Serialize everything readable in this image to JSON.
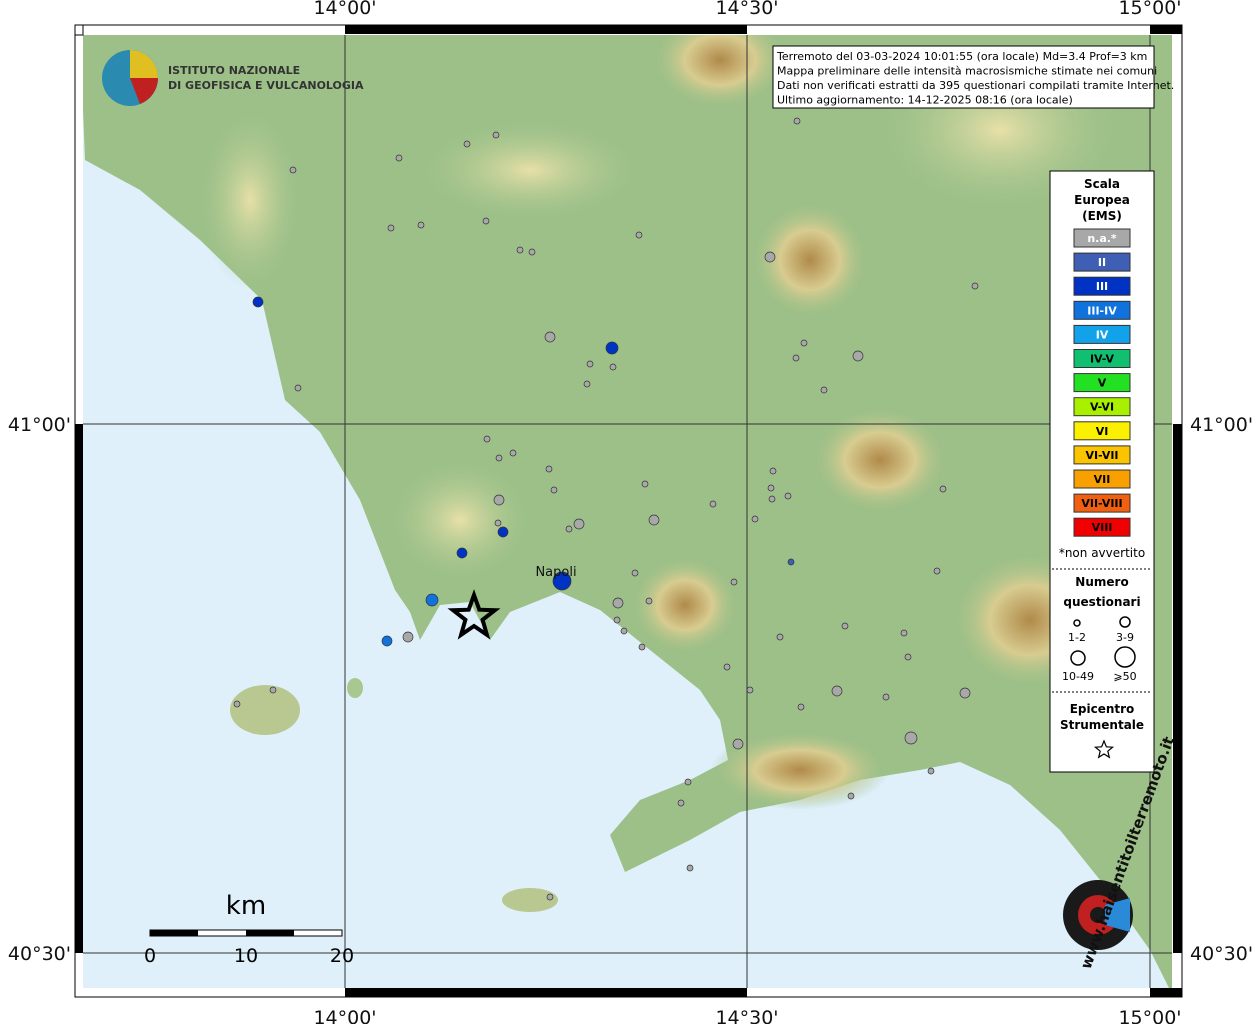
{
  "graticule": {
    "lon_labels": [
      "14°00'",
      "14°30'",
      "15°00'"
    ],
    "lat_labels": [
      "41°00'",
      "40°30'"
    ]
  },
  "logo": {
    "line1": "ISTITUTO NAZIONALE",
    "line2": "DI GEOFISICA E VULCANOLOGIA"
  },
  "info": [
    "Terremoto del 03-03-2024 10:01:55 (ora locale) Md=3.4 Prof=3 km",
    "Mappa preliminare delle intensità macrosismiche stimate nei comuni",
    "Dati non verificati estratti da 395 questionari compilati tramite Internet.",
    "Ultimo aggiornamento: 14-12-2025 08:16 (ora locale)"
  ],
  "legend": {
    "title": [
      "Scala",
      "Europea",
      "(EMS)"
    ],
    "classes": [
      {
        "label": "n.a.*",
        "color": "#a8a8a8"
      },
      {
        "label": "II",
        "color": "#3f5fb4"
      },
      {
        "label": "III",
        "color": "#0033c4"
      },
      {
        "label": "III-IV",
        "color": "#1072dc"
      },
      {
        "label": "IV",
        "color": "#12a2ea"
      },
      {
        "label": "IV-V",
        "color": "#10c070"
      },
      {
        "label": "V",
        "color": "#22e022"
      },
      {
        "label": "V-VI",
        "color": "#a8f000"
      },
      {
        "label": "VI",
        "color": "#faf000"
      },
      {
        "label": "VI-VII",
        "color": "#fac400"
      },
      {
        "label": "VII",
        "color": "#f8a000"
      },
      {
        "label": "VII-VIII",
        "color": "#f06010"
      },
      {
        "label": "VIII",
        "color": "#f00000"
      }
    ],
    "note": "*non avvertito",
    "count_title": [
      "Numero",
      "questionari"
    ],
    "count_labels": [
      "1-2",
      "3-9",
      "10-49",
      "⩾50"
    ],
    "epicentre": [
      "Epicentro",
      "Strumentale"
    ]
  },
  "city": "Napoli",
  "scale_bar": {
    "unit": "km",
    "labels": [
      "0",
      "10",
      "20"
    ]
  },
  "badge": "www.haisentitoilterremoto.it"
}
